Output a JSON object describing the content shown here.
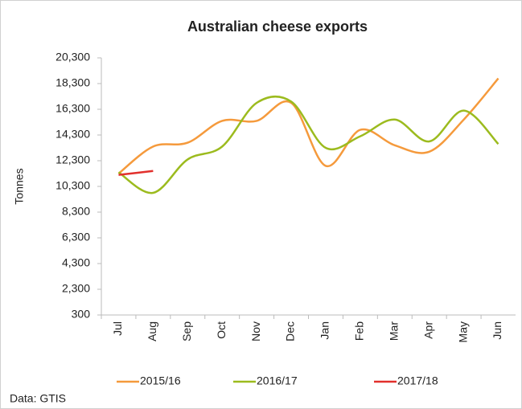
{
  "chart_data": {
    "type": "line",
    "title": "Australian cheese exports",
    "ylabel": "Tonnes",
    "source": "Data: GTIS",
    "categories": [
      "Jul",
      "Aug",
      "Sep",
      "Oct",
      "Nov",
      "Dec",
      "Jan",
      "Feb",
      "Mar",
      "Apr",
      "May",
      "Jun"
    ],
    "series": [
      {
        "name": "2015/16",
        "color": "#f59a3c",
        "values": [
          11300,
          13400,
          13700,
          15400,
          15400,
          16800,
          11900,
          14700,
          13500,
          13000,
          15500,
          18700
        ]
      },
      {
        "name": "2016/17",
        "color": "#9cbb1e",
        "values": [
          11400,
          9800,
          12400,
          13400,
          16800,
          16900,
          13300,
          14200,
          15500,
          13800,
          16200,
          13600
        ]
      },
      {
        "name": "2017/18",
        "color": "#e2302c",
        "values": [
          11200,
          11500,
          null,
          null,
          null,
          null,
          null,
          null,
          null,
          null,
          null,
          null
        ]
      }
    ],
    "ylim": [
      300,
      20300
    ],
    "yticks": [
      300,
      {
        "value": 2300,
        "label": "2,300"
      },
      {
        "value": 4300,
        "label": "4,300"
      },
      {
        "value": 6300,
        "label": "6,300"
      },
      {
        "value": 8300,
        "label": "8,300"
      },
      {
        "value": 10300,
        "label": "10,300"
      },
      {
        "value": 12300,
        "label": "12,300"
      },
      {
        "value": 14300,
        "label": "14,300"
      },
      {
        "value": 16300,
        "label": "16,300"
      },
      {
        "value": 18300,
        "label": "18,300"
      },
      {
        "value": 20300,
        "label": "20,300"
      }
    ],
    "grid": false,
    "legend": "bottom",
    "smooth": true
  }
}
